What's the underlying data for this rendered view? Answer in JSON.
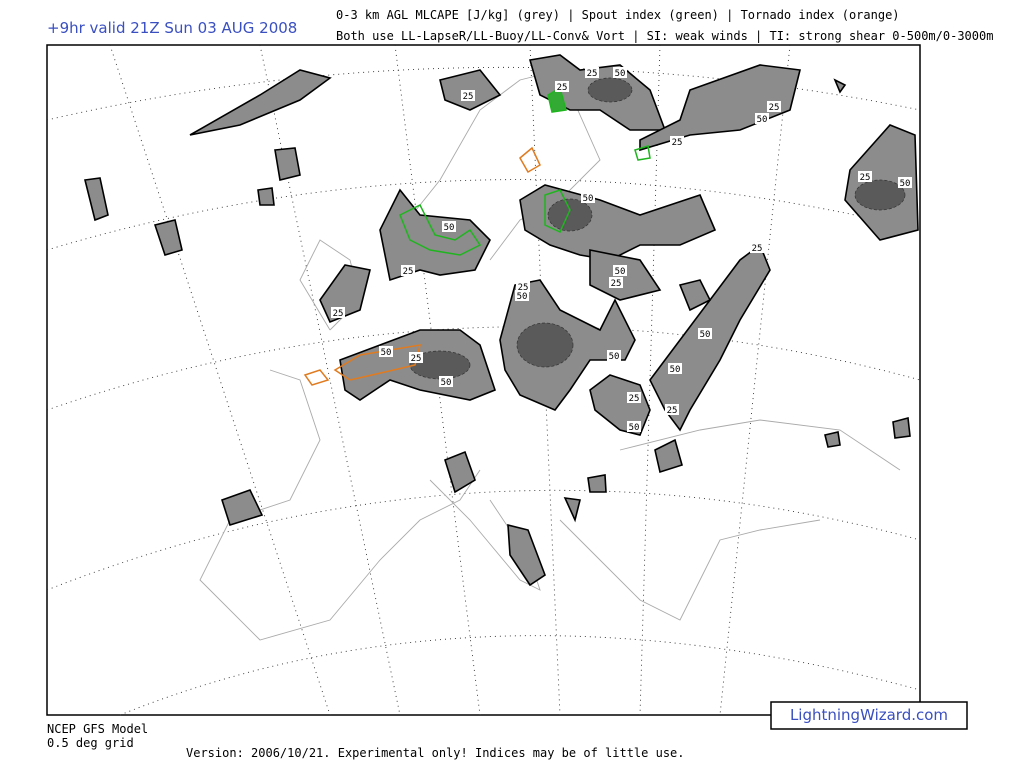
{
  "header": {
    "forecast": "+9hr valid 21Z Sun 03 AUG 2008",
    "legend_line1": "0-3 km AGL MLCAPE [J/kg] (grey) | Spout index (green) | Tornado index (orange)",
    "legend_line2": "Both use LL-LapseR/LL-Buoy/LL-Conv& Vort | SI: weak winds | TI: strong shear 0-500m/0-3000m"
  },
  "map": {
    "contour_labels": [
      25,
      50,
      25,
      25,
      25,
      50,
      25,
      25,
      50,
      50,
      25,
      50,
      50,
      25,
      25,
      50,
      25,
      50,
      25,
      50,
      50,
      50,
      50,
      25,
      25,
      50,
      25
    ]
  },
  "footer": {
    "model": "NCEP GFS Model",
    "grid": "0.5 deg grid",
    "version": "Version: 2006/10/21.  Experimental only! Indices may be of little use.",
    "brand": "LightningWizard.com"
  }
}
